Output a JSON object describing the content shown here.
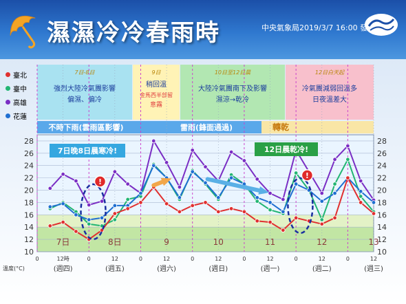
{
  "header": {
    "title": "濕濕冷冷春雨時",
    "issuer": "中央氣象局2019/3/7 16:00  發布"
  },
  "legend": [
    {
      "name": "臺北",
      "color": "#e03030"
    },
    {
      "name": "臺中",
      "color": "#22b573"
    },
    {
      "name": "高雄",
      "color": "#7a2ec4"
    },
    {
      "name": "花蓮",
      "color": "#1f6fd1"
    }
  ],
  "panels": [
    {
      "date": "7日-8日",
      "lines": [
        "強烈大陸冷氣團影響",
        "偏濕、偏冷"
      ],
      "bg": "#a9e2f1"
    },
    {
      "date": "9日",
      "lines": [
        "稍回溫",
        "金馬西半部留",
        "意霧"
      ],
      "bg": "#fff3b6"
    },
    {
      "date": "10日至12日晨",
      "lines": [
        "大陸冷氣團南下及影響",
        "濕涼→乾冷"
      ],
      "bg": "#b2e7b2"
    },
    {
      "date": "12日白天起",
      "lines": [
        "冷氣團減弱回溫多",
        "日夜溫差大"
      ],
      "bg": "#f8c0cc"
    }
  ],
  "weather_band": {
    "items": [
      "不時下雨(雲雨區影響)",
      "雷雨(鋒面通過)",
      "轉乾"
    ]
  },
  "callouts": {
    "left": "7日晚8日晨寒冷!",
    "right": "12日晨乾冷!",
    "warning": "!"
  },
  "axis_unit": "溫度(°C)",
  "chart_data": {
    "type": "line",
    "ylim": [
      10,
      29
    ],
    "yticks": [
      10,
      12,
      14,
      16,
      18,
      20,
      22,
      24,
      26,
      28
    ],
    "time_ticks": [
      "0",
      "12時",
      "0",
      "12",
      "0",
      "12",
      "0",
      "12",
      "0",
      "12",
      "0",
      "12",
      "0",
      "12"
    ],
    "day_labels": [
      "7日",
      "8日",
      "9",
      "10",
      "11",
      "12",
      "13"
    ],
    "weekday_labels": [
      "(週四)",
      "(週五)",
      "(週六)",
      "(週日)",
      "(週一)",
      "(週二)",
      "(週三)"
    ],
    "x_hours_start": 0,
    "x_hours_end": 156,
    "series": [
      {
        "name": "高雄",
        "color": "#7a2ec4",
        "x": [
          6,
          12,
          18,
          24,
          30,
          36,
          42,
          48,
          54,
          60,
          66,
          72,
          78,
          84,
          90,
          96,
          102,
          108,
          114,
          120,
          126,
          132,
          138,
          144,
          150,
          156
        ],
        "y": [
          20.3,
          22.6,
          21.5,
          17.6,
          18.2,
          23.0,
          21.0,
          19.5,
          28.0,
          24.5,
          20.5,
          26.5,
          23.8,
          21.5,
          26.2,
          24.8,
          21.8,
          19.5,
          18.5,
          26.5,
          23.0,
          19.5,
          25.0,
          27.2,
          21.5,
          18.4
        ]
      },
      {
        "name": "臺中",
        "color": "#22b573",
        "x": [
          6,
          12,
          18,
          24,
          30,
          36,
          42,
          48,
          54,
          60,
          66,
          72,
          78,
          84,
          90,
          96,
          102,
          108,
          114,
          120,
          126,
          132,
          138,
          144,
          150,
          156
        ],
        "y": [
          17.0,
          18.0,
          16.5,
          14.5,
          14.2,
          15.2,
          18.5,
          19.0,
          24.2,
          22.0,
          18.5,
          23.2,
          21.0,
          18.5,
          22.5,
          21.0,
          18.2,
          16.8,
          16.2,
          22.8,
          20.0,
          15.2,
          21.0,
          25.0,
          19.0,
          16.5
        ]
      },
      {
        "name": "花蓮",
        "color": "#1f6fd1",
        "x": [
          6,
          12,
          18,
          24,
          30,
          36,
          42,
          48,
          54,
          60,
          66,
          72,
          78,
          84,
          90,
          96,
          102,
          108,
          114,
          120,
          126,
          132,
          138,
          144,
          150,
          156
        ],
        "y": [
          17.3,
          17.8,
          16.0,
          15.2,
          15.5,
          17.5,
          17.5,
          19.5,
          24.0,
          22.0,
          18.8,
          23.0,
          21.2,
          18.8,
          22.0,
          21.0,
          18.8,
          18.0,
          16.5,
          21.0,
          20.0,
          18.2,
          19.5,
          22.0,
          19.8,
          18.0
        ]
      },
      {
        "name": "臺北",
        "color": "#e03030",
        "x": [
          6,
          12,
          18,
          24,
          30,
          36,
          42,
          48,
          54,
          60,
          66,
          72,
          78,
          84,
          90,
          96,
          102,
          108,
          114,
          120,
          126,
          132,
          138,
          144,
          150,
          156
        ],
        "y": [
          14.2,
          14.8,
          13.3,
          12.0,
          13.5,
          16.2,
          17.0,
          18.0,
          20.5,
          17.8,
          16.5,
          17.5,
          18.0,
          16.5,
          17.0,
          16.5,
          15.0,
          14.8,
          13.5,
          15.5,
          15.0,
          14.5,
          15.5,
          22.0,
          18.0,
          16.2
        ]
      }
    ],
    "bands": [
      {
        "from": 10,
        "to": 14,
        "color": "#c2e6a4"
      },
      {
        "from": 14,
        "to": 16,
        "color": "#e3f2c6"
      },
      {
        "from": 16,
        "to": 29,
        "color": "#eaf5ff"
      }
    ],
    "trend_arrows": [
      {
        "x1": 54,
        "y1": 20.8,
        "x2": 60,
        "y2": 21.6,
        "color": "#f2a74a"
      },
      {
        "x1": 79,
        "y1": 21.8,
        "x2": 105,
        "y2": 19.8,
        "color": "#5ab0e6"
      }
    ],
    "cold_marks": [
      {
        "x": 26,
        "y": 16.5
      },
      {
        "x": 122,
        "y": 17.5
      }
    ]
  }
}
